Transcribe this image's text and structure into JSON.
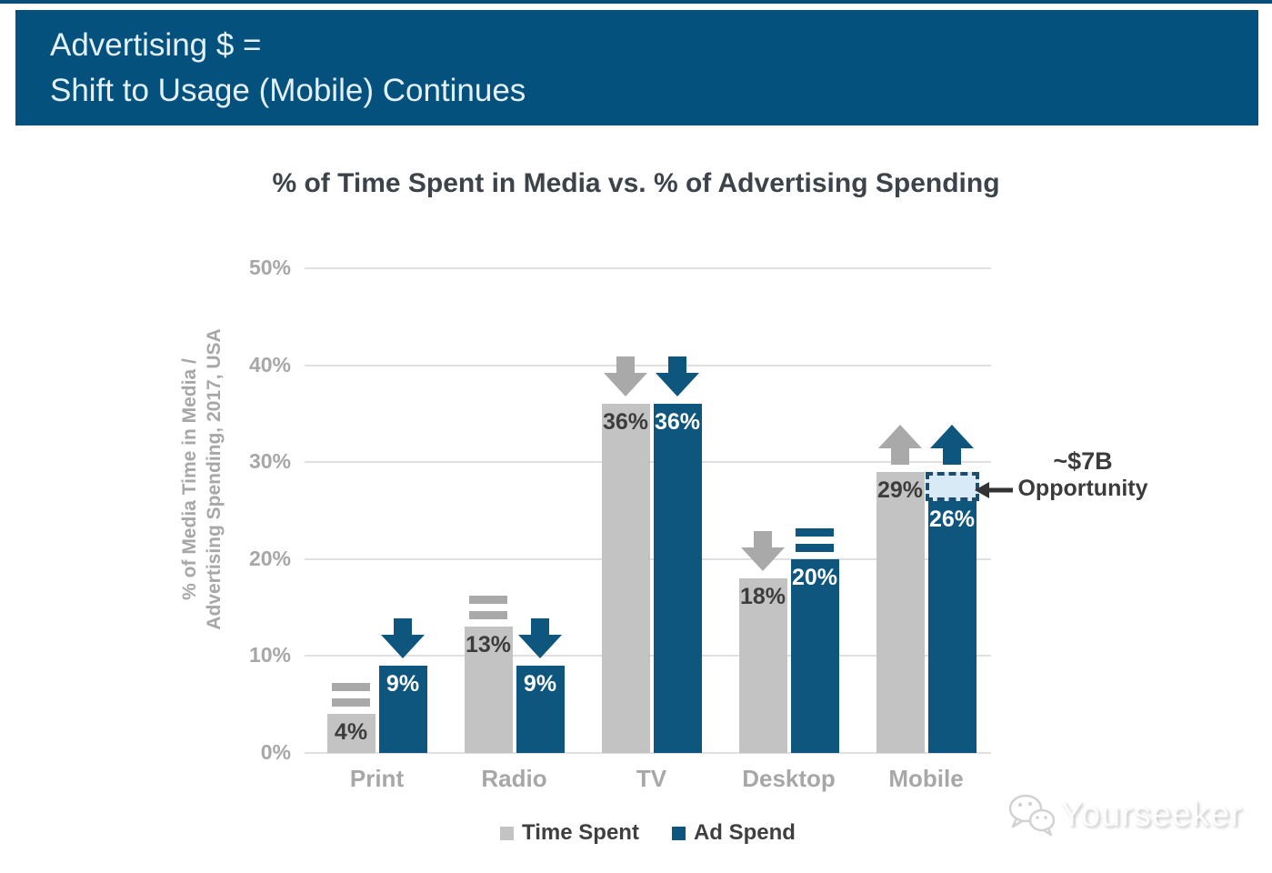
{
  "banner": {
    "line1": "Advertising $ =",
    "line2": "Shift to Usage (Mobile) Continues"
  },
  "chart_data": {
    "type": "bar",
    "title": "% of Time Spent in Media vs. % of Advertising Spending",
    "ylabel_line1": "% of Media Time in Media /",
    "ylabel_line2": "Advertising Spending, 2017, USA",
    "categories": [
      "Print",
      "Radio",
      "TV",
      "Desktop",
      "Mobile"
    ],
    "series": [
      {
        "name": "Time Spent",
        "color": "#c3c3c3",
        "value_label_color": "#3d3d3d",
        "trend_color": "#a9a9a9",
        "values": [
          4,
          13,
          36,
          18,
          29
        ],
        "trend_icons": [
          "equal",
          "equal",
          "down",
          "down",
          "up"
        ]
      },
      {
        "name": "Ad Spend",
        "color": "#0e567e",
        "value_label_color": "#ffffff",
        "trend_color": "#0e567e",
        "values": [
          9,
          9,
          36,
          20,
          26
        ],
        "trend_icons": [
          "down",
          "down",
          "down",
          "equal",
          "up"
        ]
      }
    ],
    "value_suffix": "%",
    "ylim": [
      0,
      50
    ],
    "yticks": [
      {
        "value": 0,
        "label": "0%"
      },
      {
        "value": 10,
        "label": "10%"
      },
      {
        "value": 20,
        "label": "20%"
      },
      {
        "value": 30,
        "label": "30%"
      },
      {
        "value": 40,
        "label": "40%"
      },
      {
        "value": 50,
        "label": "50%"
      }
    ],
    "grid": true,
    "legend_position": "bottom"
  },
  "annotation": {
    "line1": "~$7B",
    "line2": "Opportunity",
    "category": "Mobile",
    "box_fill": "#d7eaf6",
    "box_border": "#1c4d6e"
  },
  "watermark": {
    "text": "Yourseeker",
    "icon": "wechat-chat-bubbles-icon"
  },
  "colors": {
    "banner_bg": "#05517e",
    "banner_text": "#e4f1fb",
    "bar_time_spent": "#c3c3c3",
    "bar_ad_spend": "#0e567e",
    "trend_gray": "#a9a9a9",
    "axis_text": "#a7a7a7",
    "gridline": "#e0e0e0",
    "annotation_arrow": "#333333"
  }
}
